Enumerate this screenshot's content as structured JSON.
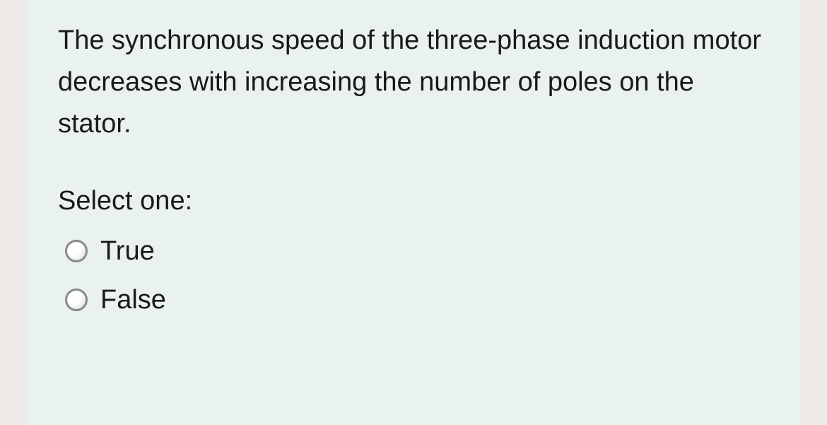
{
  "question": {
    "text": "The synchronous speed of the three-phase induction motor decreases with increasing the number of poles on the stator.",
    "prompt": "Select one:",
    "options": [
      {
        "label": "True"
      },
      {
        "label": "False"
      }
    ]
  },
  "colors": {
    "page_background": "#eeeae7",
    "card_background": "#e9f1f1",
    "text": "#1a1a1a",
    "radio_border": "#8a8a8a"
  }
}
